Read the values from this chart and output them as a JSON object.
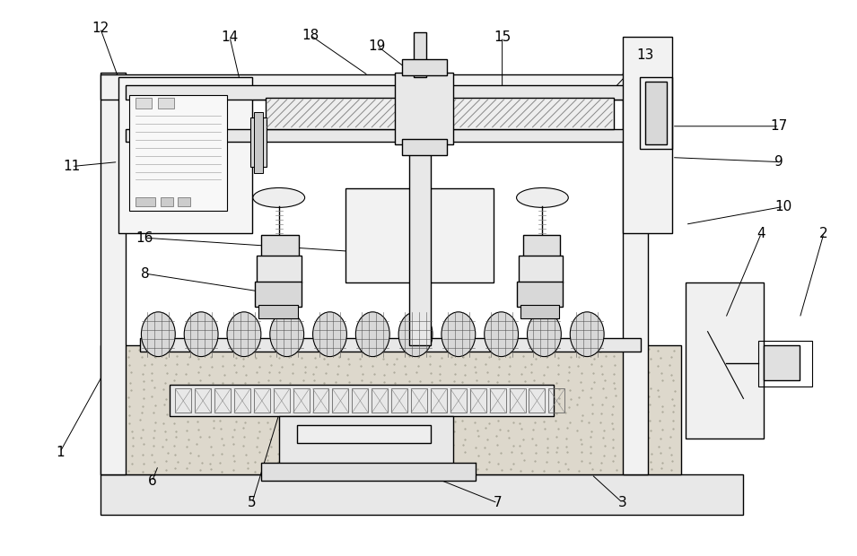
{
  "bg_color": "#ffffff",
  "lc": "#000000",
  "fc_light": "#f0f0f0",
  "fc_mid": "#e0e0e0",
  "fc_dark": "#d0d0d0",
  "fc_sand": "#ddd8cc",
  "figsize": [
    9.55,
    6.2
  ],
  "dpi": 100,
  "label_fs": 11
}
